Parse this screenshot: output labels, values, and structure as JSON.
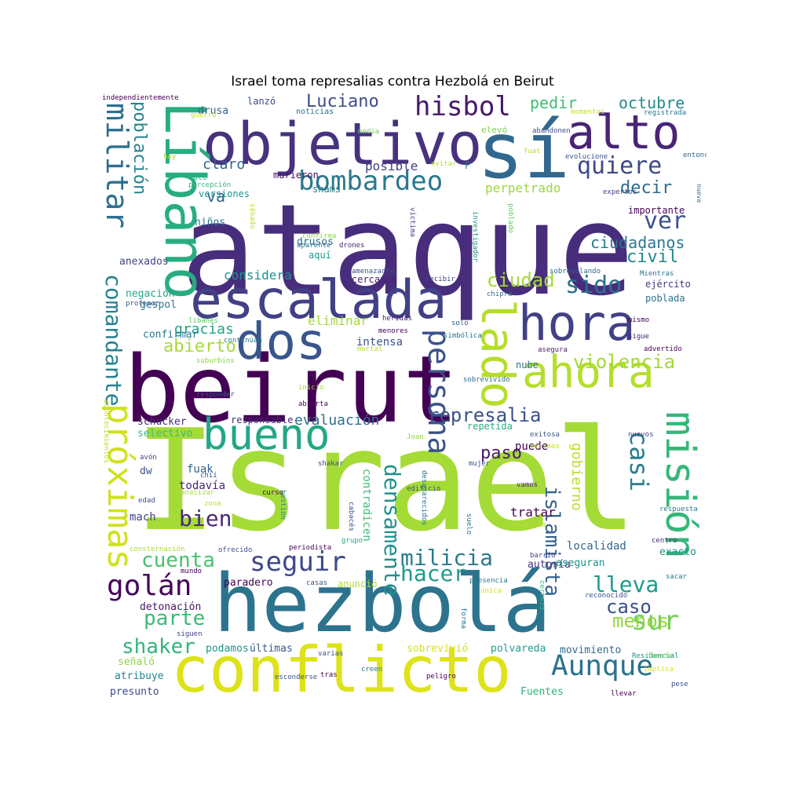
{
  "title": "Israel toma represalias contra Hezbolá en Beirut",
  "palette": [
    "#440154",
    "#482475",
    "#414487",
    "#355f8d",
    "#2a788e",
    "#21918c",
    "#22a884",
    "#44bf70",
    "#7ad151",
    "#bddf26",
    "#fde725"
  ],
  "words": [
    {
      "t": "Israel",
      "s": 178,
      "c": "#a5db36"
    },
    {
      "t": "ataque",
      "s": 160,
      "c": "#472d7b"
    },
    {
      "t": "beirut",
      "s": 118,
      "c": "#440154"
    },
    {
      "t": "hezbolá",
      "s": 102,
      "c": "#2c738e"
    },
    {
      "t": "sí",
      "s": 98,
      "c": "#31688e"
    },
    {
      "t": "conflicto",
      "s": 80,
      "c": "#dde318"
    },
    {
      "t": "objetivo",
      "s": 74,
      "c": "#46327e"
    },
    {
      "t": "Líbano",
      "s": 70,
      "c": "#27ad81"
    },
    {
      "t": "escalada",
      "s": 68,
      "c": "#424086"
    },
    {
      "t": "dos",
      "s": 64,
      "c": "#39568c"
    },
    {
      "t": "hora",
      "s": 62,
      "c": "#424086"
    },
    {
      "t": "alto",
      "s": 60,
      "c": "#482576"
    },
    {
      "t": "lado",
      "s": 58,
      "c": "#b5de2b"
    },
    {
      "t": "ahora",
      "s": 56,
      "c": "#b5de2b"
    },
    {
      "t": "bueno",
      "s": 54,
      "c": "#22a785"
    },
    {
      "t": "misión",
      "s": 52,
      "c": "#35b779"
    },
    {
      "t": "próximas",
      "s": 44,
      "c": "#d0e11c"
    },
    {
      "t": "persona",
      "s": 38,
      "c": "#3b528b"
    },
    {
      "t": "militar",
      "s": 38,
      "c": "#2d708e"
    },
    {
      "t": "golán",
      "s": 36,
      "c": "#450559"
    },
    {
      "t": "Aunque",
      "s": 36,
      "c": "#2c728e"
    },
    {
      "t": "sur",
      "s": 34,
      "c": "#75d054"
    },
    {
      "t": "seguir",
      "s": 34,
      "c": "#3e4989"
    },
    {
      "t": "hisbol",
      "s": 34,
      "c": "#48186a"
    },
    {
      "t": "bombardeo",
      "s": 34,
      "c": "#2a788e"
    },
    {
      "t": "casi",
      "s": 32,
      "c": "#287d8e"
    },
    {
      "t": "densamente",
      "s": 28,
      "c": "#20928c"
    },
    {
      "t": "quiere",
      "s": 30,
      "c": "#3e4989"
    },
    {
      "t": "ver",
      "s": 30,
      "c": "#3b528b"
    },
    {
      "t": "comandante",
      "s": 28,
      "c": "#26828e"
    },
    {
      "t": "sido",
      "s": 30,
      "c": "#2d708e"
    },
    {
      "t": "milicia",
      "s": 28,
      "c": "#287c8e"
    },
    {
      "t": "lleva",
      "s": 28,
      "c": "#1f998a"
    },
    {
      "t": "bien",
      "s": 28,
      "c": "#482979"
    },
    {
      "t": "hacer",
      "s": 28,
      "c": "#1e9b8a"
    },
    {
      "t": "islamista",
      "s": 26,
      "c": "#34618d"
    },
    {
      "t": "cuenta",
      "s": 26,
      "c": "#4ac16d"
    },
    {
      "t": "parte",
      "s": 26,
      "c": "#3aba76"
    },
    {
      "t": "shaker",
      "s": 26,
      "c": "#31b57b"
    },
    {
      "t": "violencia",
      "s": 24,
      "c": "#a2da37"
    },
    {
      "t": "represalia",
      "s": 24,
      "c": "#3b528b"
    },
    {
      "t": "ciudad",
      "s": 24,
      "c": "#a0da39"
    },
    {
      "t": "caso",
      "s": 24,
      "c": "#3c508b"
    },
    {
      "t": "menos",
      "s": 24,
      "c": "#93d741"
    },
    {
      "t": "Luciano",
      "s": 22,
      "c": "#3e4c8a"
    },
    {
      "t": "población",
      "s": 22,
      "c": "#26828e"
    },
    {
      "t": "abierto",
      "s": 22,
      "c": "#a8db34"
    },
    {
      "t": "civil",
      "s": 22,
      "c": "#24878e"
    },
    {
      "t": "decir",
      "s": 22,
      "c": "#2e6d8e"
    },
    {
      "t": "paso",
      "s": 22,
      "c": "#481b6d"
    },
    {
      "t": "gobierno",
      "s": 18,
      "c": "#b8de29"
    },
    {
      "t": "octubre",
      "s": 20,
      "c": "#228c8d"
    },
    {
      "t": "pedir",
      "s": 20,
      "c": "#3fbc73"
    },
    {
      "t": "ciudadanos",
      "s": 20,
      "c": "#2a788e"
    },
    {
      "t": "va",
      "s": 20,
      "c": "#32648e"
    },
    {
      "t": "claro",
      "s": 18,
      "c": "#33628d"
    },
    {
      "t": "gracias",
      "s": 18,
      "c": "#1fa188"
    },
    {
      "t": "evaluación",
      "s": 18,
      "c": "#2e6e8e"
    },
    {
      "t": "considera",
      "s": 16,
      "c": "#21908d"
    },
    {
      "t": "eliminar",
      "s": 16,
      "c": "#a2da37"
    },
    {
      "t": "tratar",
      "s": 16,
      "c": "#440256"
    },
    {
      "t": "perpetrado",
      "s": 16,
      "c": "#9bd93c"
    },
    {
      "t": "posible",
      "s": 16,
      "c": "#423f85"
    },
    {
      "t": "puede",
      "s": 14,
      "c": "#440154"
    },
    {
      "t": "localidad",
      "s": 14,
      "c": "#31678e"
    },
    {
      "t": "contradicen",
      "s": 14,
      "c": "#3dbc74"
    },
    {
      "t": "intensa",
      "s": 14,
      "c": "#3b528b"
    },
    {
      "t": "confirmar",
      "s": 13,
      "c": "#2a788e"
    },
    {
      "t": "fuak",
      "s": 14,
      "c": "#33628d"
    },
    {
      "t": "todavía",
      "s": 14,
      "c": "#482677"
    },
    {
      "t": "mach",
      "s": 14,
      "c": "#404588"
    },
    {
      "t": "polvareda",
      "s": 13,
      "c": "#1f9e89"
    },
    {
      "t": "movimiento",
      "s": 13,
      "c": "#2f6c8e"
    },
    {
      "t": "sobrevivió",
      "s": 13,
      "c": "#d2e21b"
    },
    {
      "t": "atribuye",
      "s": 13,
      "c": "#25858e"
    },
    {
      "t": "presunto",
      "s": 13,
      "c": "#3e4a89"
    },
    {
      "t": "señaló",
      "s": 13,
      "c": "#8bd646"
    },
    {
      "t": "detonación",
      "s": 13,
      "c": "#481467"
    },
    {
      "t": "Fuentes",
      "s": 13,
      "c": "#2fb47c"
    },
    {
      "t": "schucker",
      "s": 13,
      "c": "#472c7a"
    },
    {
      "t": "selectivo",
      "s": 13,
      "c": "#3bbb75"
    },
    {
      "t": "responsable",
      "s": 12,
      "c": "#482878"
    },
    {
      "t": "últimas",
      "s": 13,
      "c": "#365d8d"
    },
    {
      "t": "podamos",
      "s": 13,
      "c": "#1f968b"
    },
    {
      "t": "paradero",
      "s": 13,
      "c": "#440154"
    },
    {
      "t": "autoría",
      "s": 13,
      "c": "#46337f"
    },
    {
      "t": "aseguran",
      "s": 13,
      "c": "#20928c"
    },
    {
      "t": "nube",
      "s": 12,
      "c": "#2c728e"
    },
    {
      "t": "repetida",
      "s": 12,
      "c": "#27ad81"
    },
    {
      "t": "exacto",
      "s": 13,
      "c": "#21918c"
    },
    {
      "t": "anunció",
      "s": 12,
      "c": "#b5de2b"
    },
    {
      "t": "dw",
      "s": 13,
      "c": "#3b528b"
    },
    {
      "t": "gespol",
      "s": 13,
      "c": "#2a788e"
    },
    {
      "t": "anexados",
      "s": 13,
      "c": "#414487"
    },
    {
      "t": "negación",
      "s": 13,
      "c": "#22a884"
    },
    {
      "t": "niños",
      "s": 13,
      "c": "#2a788e"
    },
    {
      "t": "drusos",
      "s": 13,
      "c": "#2f6b8e"
    },
    {
      "t": "aquí",
      "s": 12,
      "c": "#1f9e89"
    },
    {
      "t": "murieron",
      "s": 12,
      "c": "#470e61"
    },
    {
      "t": "versiones",
      "s": 12,
      "c": "#1f968b"
    },
    {
      "t": "shams",
      "s": 12,
      "c": "#2a768e"
    },
    {
      "t": "drusa",
      "s": 13,
      "c": "#35608d"
    },
    {
      "t": "lanzó",
      "s": 12,
      "c": "#3e4a89"
    },
    {
      "t": "importante",
      "s": 12,
      "c": "#440154"
    },
    {
      "t": "ejército",
      "s": 12,
      "c": "#453781"
    },
    {
      "t": "poblada",
      "s": 12,
      "c": "#2b758e"
    },
    {
      "t": "cercanas",
      "s": 12,
      "c": "#482173"
    },
    {
      "t": "mató",
      "s": 10,
      "c": "#29af7f"
    },
    {
      "t": "F",
      "s": 12,
      "c": "#2a788e"
    },
    {
      "t": "elevó",
      "s": 11,
      "c": "#7ad151"
    },
    {
      "t": "independientemente",
      "s": 9,
      "c": "#440154"
    },
    {
      "t": "noticias",
      "s": 10,
      "c": "#2c718e"
    },
    {
      "t": "media",
      "s": 9,
      "c": "#73d056"
    },
    {
      "t": "guerra",
      "s": 9,
      "c": "#bddf26"
    },
    {
      "t": "hoy",
      "s": 9,
      "c": "#a2da37"
    },
    {
      "t": "evitar",
      "s": 9,
      "c": "#b5de2b"
    },
    {
      "t": "fuat",
      "s": 9,
      "c": "#c0df25"
    },
    {
      "t": "momentos",
      "s": 9,
      "c": "#bddf26"
    },
    {
      "t": "abandonen",
      "s": 9,
      "c": "#3e4989"
    },
    {
      "t": "registrada",
      "s": 9,
      "c": "#2a788e"
    },
    {
      "t": "evolucione",
      "s": 9,
      "c": "#3b528b"
    },
    {
      "t": "entonces",
      "s": 9,
      "c": "#33638d"
    },
    {
      "t": "expertos",
      "s": 9,
      "c": "#433e85"
    },
    {
      "t": "nueva",
      "s": 8,
      "c": "#2e6e8e"
    },
    {
      "t": "percepción",
      "s": 9,
      "c": "#35b779"
    },
    {
      "t": "confirma",
      "s": 9,
      "c": "#8fd744"
    },
    {
      "t": "drones",
      "s": 9,
      "c": "#482071"
    },
    {
      "t": "aparente",
      "s": 9,
      "c": "#2a788e"
    },
    {
      "t": "sábado",
      "s": 9,
      "c": "#bddf26"
    },
    {
      "t": "amenazante",
      "s": 9,
      "c": "#3b528b"
    },
    {
      "t": "víctima",
      "s": 9,
      "c": "#3f4788"
    },
    {
      "t": "investigador",
      "s": 9,
      "c": "#20928c"
    },
    {
      "t": "poblado",
      "s": 9,
      "c": "#5ec962"
    },
    {
      "t": "recibir",
      "s": 9,
      "c": "#404688"
    },
    {
      "t": "chipre",
      "s": 9,
      "c": "#2e6f8e"
    },
    {
      "t": "sobrevolando",
      "s": 9,
      "c": "#31688e"
    },
    {
      "t": "Mientras",
      "s": 9,
      "c": "#2c728e"
    },
    {
      "t": "profesor",
      "s": 9,
      "c": "#3b528b"
    },
    {
      "t": "libanés",
      "s": 9,
      "c": "#5ec962"
    },
    {
      "t": "heridas",
      "s": 9,
      "c": "#482071"
    },
    {
      "t": "solo",
      "s": 9,
      "c": "#34608d"
    },
    {
      "t": "mismo",
      "s": 9,
      "c": "#440154"
    },
    {
      "t": "menores",
      "s": 9,
      "c": "#440154"
    },
    {
      "t": "simbólica",
      "s": 9,
      "c": "#2a788e"
    },
    {
      "t": "asegura",
      "s": 9,
      "c": "#481a6c"
    },
    {
      "t": "sigue",
      "s": 9,
      "c": "#482173"
    },
    {
      "t": "advertido",
      "s": 9,
      "c": "#440154"
    },
    {
      "t": "continúan",
      "s": 9,
      "c": "#2a788e"
    },
    {
      "t": "mortal",
      "s": 9,
      "c": "#bddf26"
    },
    {
      "t": "suburbios",
      "s": 9,
      "c": "#8bd646"
    },
    {
      "t": "sobrevivido",
      "s": 9,
      "c": "#2f6b8e"
    },
    {
      "t": "inicio",
      "s": 9,
      "c": "#9bd93c"
    },
    {
      "t": "responder",
      "s": 9,
      "c": "#3b528b"
    },
    {
      "t": "abierta",
      "s": 9,
      "c": "#440154"
    },
    {
      "t": "acontecimientos",
      "s": 9,
      "c": "#b8de29"
    },
    {
      "t": "Joan",
      "s": 9,
      "c": "#93d741"
    },
    {
      "t": "exitosa",
      "s": 9,
      "c": "#3b528b"
    },
    {
      "t": "nuevos",
      "s": 9,
      "c": "#404588"
    },
    {
      "t": "venimos",
      "s": 9,
      "c": "#bddf26"
    },
    {
      "t": "mujer",
      "s": 9,
      "c": "#3b528b"
    },
    {
      "t": "avón",
      "s": 9,
      "c": "#3e4989"
    },
    {
      "t": "chií",
      "s": 9,
      "c": "#3b528b"
    },
    {
      "t": "shakar",
      "s": 9,
      "c": "#414487"
    },
    {
      "t": "edificio",
      "s": 9,
      "c": "#3e4989"
    },
    {
      "t": "vamos",
      "s": 9,
      "c": "#482475"
    },
    {
      "t": "edad",
      "s": 9,
      "c": "#3b528b"
    },
    {
      "t": "analizar",
      "s": 9,
      "c": "#a5db36"
    },
    {
      "t": "curso",
      "s": 9,
      "c": "#440154"
    },
    {
      "t": "zona",
      "s": 9,
      "c": "#c2df23"
    },
    {
      "t": "bastión",
      "s": 9,
      "c": "#21918c"
    },
    {
      "t": "cabacés",
      "s": 9,
      "c": "#3b528b"
    },
    {
      "t": "desaparecidos",
      "s": 9,
      "c": "#2a788e"
    },
    {
      "t": "suelo",
      "s": 9,
      "c": "#2c728e"
    },
    {
      "t": "evacuada",
      "s": 9,
      "c": "#b5de2b"
    },
    {
      "t": "respuesta",
      "s": 9,
      "c": "#2a788e"
    },
    {
      "t": "centro",
      "s": 9,
      "c": "#482475"
    },
    {
      "t": "consternación",
      "s": 9,
      "c": "#aadc32"
    },
    {
      "t": "ofrecido",
      "s": 9,
      "c": "#3b528b"
    },
    {
      "t": "periodista",
      "s": 9,
      "c": "#440154"
    },
    {
      "t": "grupo",
      "s": 9,
      "c": "#22a884"
    },
    {
      "t": "barrio",
      "s": 9,
      "c": "#414487"
    },
    {
      "t": "mundo",
      "s": 9,
      "c": "#440154"
    },
    {
      "t": "casas",
      "s": 9,
      "c": "#3b528b"
    },
    {
      "t": "presencia",
      "s": 9,
      "c": "#2a788e"
    },
    {
      "t": "única",
      "s": 9,
      "c": "#d8e219"
    },
    {
      "t": "certeza",
      "s": 9,
      "c": "#35b779"
    },
    {
      "t": "forma",
      "s": 9,
      "c": "#2a788e"
    },
    {
      "t": "reconocido",
      "s": 9,
      "c": "#3b528b"
    },
    {
      "t": "sacar",
      "s": 9,
      "c": "#2a788e"
    },
    {
      "t": "siguen",
      "s": 9,
      "c": "#414487"
    },
    {
      "t": "varias",
      "s": 9,
      "c": "#3b528b"
    },
    {
      "t": "esconderse",
      "s": 9,
      "c": "#3b528b"
    },
    {
      "t": "Residencial",
      "s": 9,
      "c": "#21918c"
    },
    {
      "t": "fuerte",
      "s": 9,
      "c": "#7ad151"
    },
    {
      "t": "tras",
      "s": 9,
      "c": "#440154"
    },
    {
      "t": "creen",
      "s": 9,
      "c": "#2a788e"
    },
    {
      "t": "peligro",
      "s": 9,
      "c": "#440154"
    },
    {
      "t": "pese",
      "s": 9,
      "c": "#3b528b"
    },
    {
      "t": "llevar",
      "s": 9,
      "c": "#440154"
    },
    {
      "t": "implica",
      "s": 9,
      "c": "#d8e219"
    }
  ]
}
